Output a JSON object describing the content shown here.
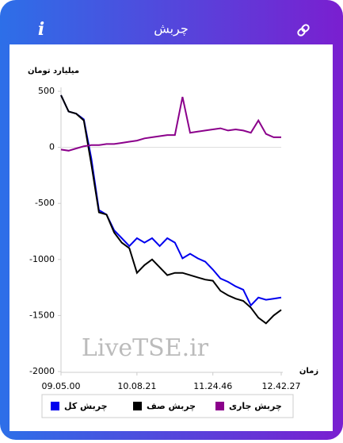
{
  "header": {
    "title": "چربش",
    "info": "i"
  },
  "watermark": "LiveTSE.ir",
  "chart_data": {
    "type": "line",
    "y_label": "میلیارد تومان",
    "x_label": "زمان",
    "categories": [
      "09.05.00",
      null,
      null,
      null,
      null,
      null,
      null,
      null,
      null,
      null,
      "10.08.21",
      null,
      null,
      null,
      null,
      null,
      null,
      null,
      null,
      null,
      "11.24.46",
      null,
      null,
      null,
      null,
      null,
      null,
      null,
      null,
      "12.42.27"
    ],
    "series": [
      {
        "name": "چربش کل",
        "color": "#0000ee",
        "values": [
          465,
          320,
          300,
          250,
          -100,
          -560,
          -600,
          -740,
          -810,
          -880,
          -810,
          -850,
          -810,
          -880,
          -810,
          -850,
          -990,
          -950,
          -990,
          -1020,
          -1090,
          -1170,
          -1200,
          -1240,
          -1270,
          -1410,
          -1340,
          -1360,
          -1350,
          -1340
        ]
      },
      {
        "name": "چربش صف",
        "color": "#000000",
        "values": [
          465,
          320,
          300,
          240,
          -150,
          -580,
          -600,
          -760,
          -850,
          -900,
          -1120,
          -1050,
          -1000,
          -1070,
          -1140,
          -1120,
          -1120,
          -1140,
          -1160,
          -1180,
          -1190,
          -1280,
          -1320,
          -1350,
          -1370,
          -1430,
          -1520,
          -1570,
          -1500,
          -1450
        ]
      },
      {
        "name": "چربش جاری",
        "color": "#8b008b",
        "values": [
          -20,
          -30,
          -10,
          10,
          20,
          20,
          30,
          30,
          40,
          50,
          60,
          80,
          90,
          100,
          110,
          110,
          450,
          130,
          140,
          150,
          160,
          170,
          150,
          160,
          150,
          130,
          240,
          120,
          90,
          90
        ]
      }
    ],
    "ylim": [
      -2000,
      500
    ],
    "yticks": [
      500,
      0,
      -500,
      -1000,
      -1500,
      -2000
    ],
    "zero_line": true
  }
}
